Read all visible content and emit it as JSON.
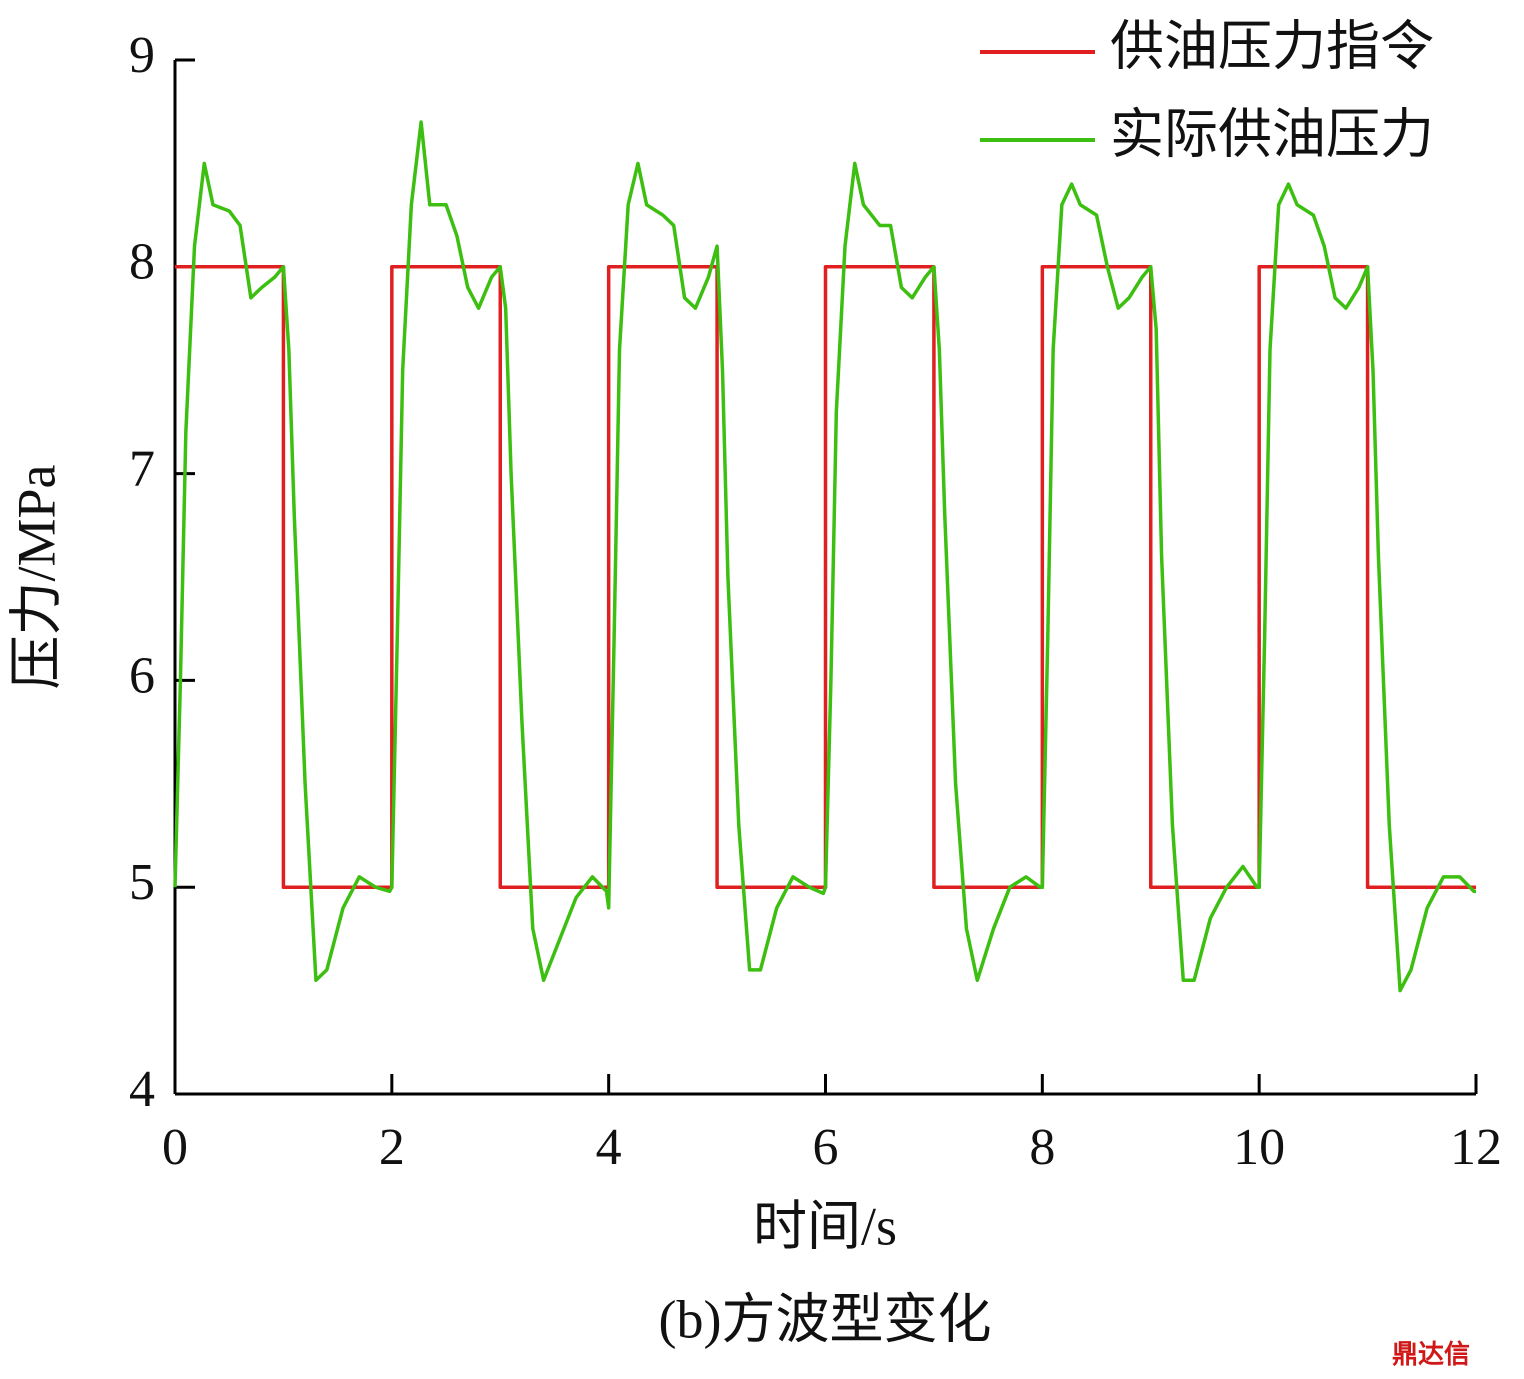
{
  "chart_data": {
    "type": "line",
    "xlabel": "时间/s",
    "ylabel": "压力/MPa",
    "caption": "(b)方波型变化",
    "watermark": "鼎达信",
    "xlim": [
      0,
      12
    ],
    "xticks": [
      0,
      2,
      4,
      6,
      8,
      10,
      12
    ],
    "ylim": [
      4,
      9
    ],
    "yticks": [
      4,
      5,
      6,
      7,
      8,
      9
    ],
    "legend": "top-right",
    "series": [
      {
        "name": "供油压力指令",
        "color": "#e02020",
        "x": [
          0,
          1,
          1,
          2,
          2,
          3,
          3,
          4,
          4,
          5,
          5,
          6,
          6,
          7,
          7,
          8,
          8,
          9,
          9,
          10,
          10,
          11,
          11,
          12
        ],
        "values": [
          8,
          8,
          5,
          5,
          8,
          8,
          5,
          5,
          8,
          8,
          5,
          5,
          8,
          8,
          5,
          5,
          8,
          8,
          5,
          5,
          8,
          8,
          5,
          5
        ]
      },
      {
        "name": "实际供油压力",
        "color": "#3cbf10",
        "x": [
          0,
          0.05,
          0.1,
          0.18,
          0.27,
          0.35,
          0.5,
          0.6,
          0.7,
          0.8,
          0.92,
          1,
          1.05,
          1.1,
          1.2,
          1.3,
          1.4,
          1.55,
          1.7,
          1.85,
          1.98,
          2,
          2.05,
          2.1,
          2.18,
          2.27,
          2.35,
          2.5,
          2.6,
          2.7,
          2.8,
          2.92,
          3,
          3.05,
          3.1,
          3.2,
          3.3,
          3.4,
          3.55,
          3.7,
          3.85,
          3.98,
          4,
          4.05,
          4.1,
          4.18,
          4.27,
          4.35,
          4.5,
          4.6,
          4.7,
          4.8,
          4.92,
          5,
          5.05,
          5.1,
          5.2,
          5.3,
          5.4,
          5.55,
          5.7,
          5.85,
          5.98,
          6,
          6.05,
          6.1,
          6.18,
          6.27,
          6.35,
          6.5,
          6.6,
          6.7,
          6.8,
          6.92,
          7,
          7.05,
          7.1,
          7.2,
          7.3,
          7.4,
          7.55,
          7.7,
          7.85,
          7.98,
          8,
          8.05,
          8.1,
          8.18,
          8.27,
          8.35,
          8.5,
          8.6,
          8.7,
          8.8,
          8.92,
          9,
          9.05,
          9.1,
          9.2,
          9.3,
          9.4,
          9.55,
          9.7,
          9.85,
          9.98,
          10,
          10.05,
          10.1,
          10.18,
          10.27,
          10.35,
          10.5,
          10.6,
          10.7,
          10.8,
          10.92,
          11,
          11.05,
          11.1,
          11.2,
          11.3,
          11.4,
          11.55,
          11.7,
          11.85,
          11.98,
          12
        ],
        "values": [
          5.0,
          6.0,
          7.2,
          8.1,
          8.5,
          8.3,
          8.27,
          8.2,
          7.85,
          7.9,
          7.95,
          8.0,
          7.6,
          6.8,
          5.5,
          4.55,
          4.6,
          4.9,
          5.05,
          5.0,
          4.98,
          5.0,
          6.2,
          7.5,
          8.3,
          8.7,
          8.3,
          8.3,
          8.15,
          7.9,
          7.8,
          7.95,
          8.0,
          7.8,
          7.0,
          5.8,
          4.8,
          4.55,
          4.75,
          4.95,
          5.05,
          4.98,
          4.9,
          6.2,
          7.6,
          8.3,
          8.5,
          8.3,
          8.25,
          8.2,
          7.85,
          7.8,
          7.95,
          8.1,
          7.5,
          6.5,
          5.3,
          4.6,
          4.6,
          4.9,
          5.05,
          5.0,
          4.97,
          5.0,
          6.0,
          7.3,
          8.1,
          8.5,
          8.3,
          8.2,
          8.2,
          7.9,
          7.85,
          7.95,
          8.0,
          7.6,
          6.8,
          5.5,
          4.8,
          4.55,
          4.8,
          5.0,
          5.05,
          5.0,
          5.0,
          6.2,
          7.6,
          8.3,
          8.4,
          8.3,
          8.25,
          8.0,
          7.8,
          7.85,
          7.95,
          8.0,
          7.7,
          6.6,
          5.3,
          4.55,
          4.55,
          4.85,
          5.0,
          5.1,
          5.0,
          5.0,
          6.2,
          7.6,
          8.3,
          8.4,
          8.3,
          8.25,
          8.1,
          7.85,
          7.8,
          7.9,
          8.0,
          7.5,
          6.6,
          5.3,
          4.5,
          4.6,
          4.9,
          5.05,
          5.05,
          4.98,
          4.98
        ]
      }
    ]
  }
}
